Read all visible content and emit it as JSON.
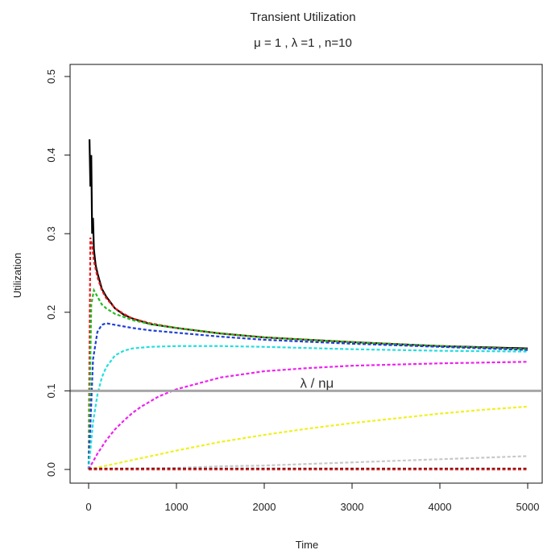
{
  "chart_data": {
    "type": "line",
    "title": "Transient Utilization",
    "subtitle": "μ = 1 , λ =1 , n=10",
    "xlabel": "Time",
    "ylabel": "Utilization",
    "xlim": [
      0,
      5000
    ],
    "ylim": [
      0.0,
      0.5
    ],
    "xticks": [
      0,
      1000,
      2000,
      3000,
      4000,
      5000
    ],
    "yticks": [
      0.0,
      0.1,
      0.2,
      0.3,
      0.4,
      0.5
    ],
    "xtick_labels": [
      "0",
      "1000",
      "2000",
      "3000",
      "4000",
      "5000"
    ],
    "ytick_labels": [
      "0.0",
      "0.1",
      "0.2",
      "0.3",
      "0.4",
      "0.5"
    ],
    "grid": false,
    "reference_line": {
      "y": 0.1,
      "label": "λ / nμ",
      "label_x": 2600,
      "color": "#a6a6a6"
    },
    "series": [
      {
        "color": "#000000",
        "style": "solid",
        "x": [
          10,
          20,
          30,
          40,
          50,
          60,
          80,
          100,
          150,
          200,
          300,
          400,
          500,
          700,
          1000,
          1500,
          2000,
          3000,
          4000,
          5000
        ],
        "y": [
          0.42,
          0.36,
          0.4,
          0.3,
          0.32,
          0.28,
          0.26,
          0.25,
          0.23,
          0.22,
          0.205,
          0.197,
          0.192,
          0.185,
          0.18,
          0.173,
          0.168,
          0.162,
          0.157,
          0.154
        ]
      },
      {
        "color": "#e41a1c",
        "style": "dashed",
        "x": [
          0,
          20,
          40,
          60,
          100,
          150,
          200,
          300,
          400,
          500,
          700,
          1000,
          1500,
          2000,
          3000,
          4000,
          5000
        ],
        "y": [
          0.0,
          0.295,
          0.285,
          0.265,
          0.245,
          0.228,
          0.218,
          0.205,
          0.198,
          0.192,
          0.186,
          0.18,
          0.173,
          0.168,
          0.162,
          0.157,
          0.153
        ]
      },
      {
        "color": "#22bb22",
        "style": "dashed",
        "x": [
          0,
          30,
          60,
          100,
          150,
          200,
          300,
          400,
          500,
          700,
          1000,
          1500,
          2000,
          3000,
          4000,
          5000
        ],
        "y": [
          0.0,
          0.21,
          0.228,
          0.22,
          0.21,
          0.205,
          0.198,
          0.194,
          0.19,
          0.185,
          0.18,
          0.173,
          0.168,
          0.162,
          0.157,
          0.153
        ]
      },
      {
        "color": "#1f3fd6",
        "style": "dashed",
        "x": [
          0,
          50,
          100,
          150,
          200,
          250,
          300,
          400,
          500,
          700,
          1000,
          1500,
          2000,
          3000,
          4000,
          5000
        ],
        "y": [
          0.0,
          0.14,
          0.175,
          0.184,
          0.186,
          0.185,
          0.184,
          0.182,
          0.18,
          0.177,
          0.174,
          0.169,
          0.165,
          0.16,
          0.156,
          0.152
        ]
      },
      {
        "color": "#22dede",
        "style": "dashed",
        "x": [
          0,
          50,
          100,
          150,
          200,
          300,
          400,
          500,
          700,
          1000,
          1500,
          2000,
          3000,
          4000,
          5000
        ],
        "y": [
          0.0,
          0.06,
          0.095,
          0.117,
          0.13,
          0.145,
          0.151,
          0.154,
          0.156,
          0.157,
          0.157,
          0.156,
          0.153,
          0.151,
          0.15
        ]
      },
      {
        "color": "#ee22ee",
        "style": "dashed",
        "x": [
          0,
          100,
          200,
          300,
          400,
          500,
          600,
          800,
          1000,
          1500,
          2000,
          2500,
          3000,
          4000,
          5000
        ],
        "y": [
          0.0,
          0.02,
          0.037,
          0.051,
          0.062,
          0.072,
          0.08,
          0.093,
          0.102,
          0.117,
          0.125,
          0.129,
          0.132,
          0.135,
          0.137
        ]
      },
      {
        "color": "#f0f020",
        "style": "dashed",
        "x": [
          0,
          250,
          500,
          1000,
          1500,
          2000,
          2500,
          3000,
          3500,
          4000,
          4500,
          5000
        ],
        "y": [
          0.0,
          0.006,
          0.012,
          0.024,
          0.035,
          0.044,
          0.052,
          0.059,
          0.065,
          0.071,
          0.076,
          0.08
        ]
      },
      {
        "color": "#c8c8c8",
        "style": "dashed",
        "x": [
          0,
          500,
          1000,
          1500,
          2000,
          2500,
          3000,
          3500,
          4000,
          4500,
          5000
        ],
        "y": [
          0.0,
          0.001,
          0.002,
          0.004,
          0.005,
          0.007,
          0.009,
          0.011,
          0.013,
          0.015,
          0.017
        ]
      },
      {
        "color": "#222222",
        "style": "dashed",
        "x": [
          0,
          1000,
          2000,
          3000,
          4000,
          5000
        ],
        "y": [
          0.001,
          0.001,
          0.001,
          0.001,
          0.001,
          0.001
        ]
      },
      {
        "color": "#e41a1c",
        "style": "dashed",
        "x": [
          0,
          1000,
          2000,
          3000,
          4000,
          5000
        ],
        "y": [
          0.0,
          0.0,
          0.0,
          0.0,
          0.0,
          0.0
        ]
      }
    ]
  }
}
